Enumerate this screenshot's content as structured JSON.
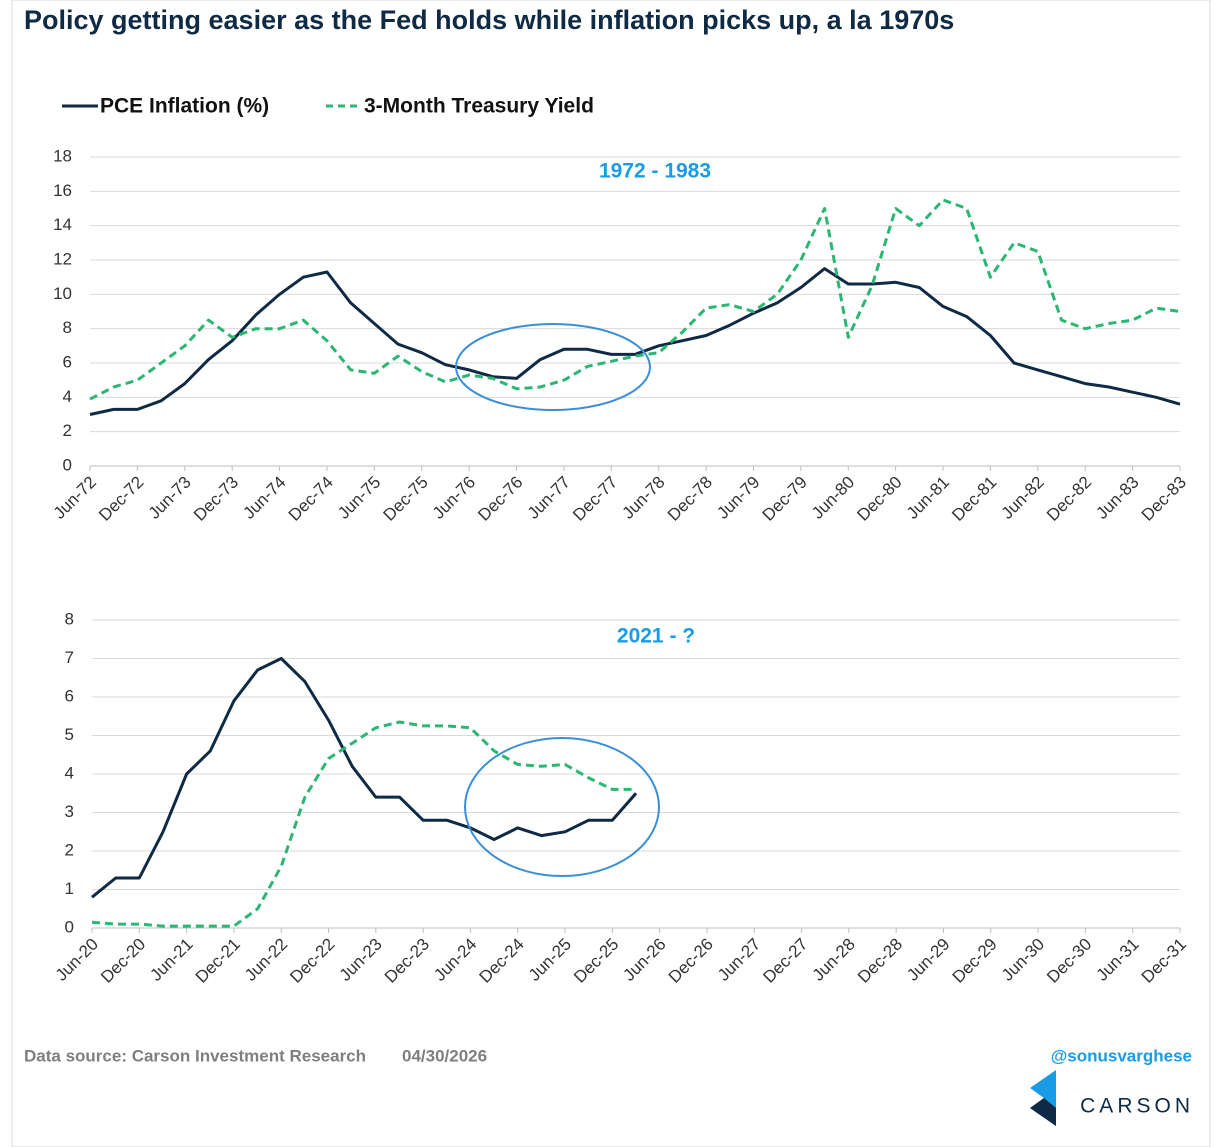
{
  "title": "Policy getting easier as the Fed holds while inflation picks up, a la 1970s",
  "footer": {
    "source": "Data source: Carson Investment Research",
    "date": "04/30/2026",
    "handle": "@sonusvarghese",
    "logo": "CARSON"
  },
  "chart_data": [
    {
      "type": "line",
      "subtitle": "1972 - 1983",
      "categories": [
        "Jun-72",
        null,
        "Dec-72",
        null,
        "Jun-73",
        null,
        "Dec-73",
        null,
        "Jun-74",
        null,
        "Dec-74",
        null,
        "Jun-75",
        null,
        "Dec-75",
        null,
        "Jun-76",
        null,
        "Dec-76",
        null,
        "Jun-77",
        null,
        "Dec-77",
        null,
        "Jun-78",
        null,
        "Dec-78",
        null,
        "Jun-79",
        null,
        "Dec-79",
        null,
        "Jun-80",
        null,
        "Dec-80",
        null,
        "Jun-81",
        null,
        "Dec-81",
        null,
        "Jun-82",
        null,
        "Dec-82",
        null,
        "Jun-83",
        null,
        "Dec-83"
      ],
      "series": [
        {
          "name": "PCE Inflation (%)",
          "color": "#0e2a44",
          "dashed": false,
          "values": [
            3.0,
            3.3,
            3.3,
            3.8,
            4.8,
            6.2,
            7.3,
            8.8,
            10.0,
            11.0,
            11.3,
            9.5,
            8.3,
            7.1,
            6.6,
            5.9,
            5.6,
            5.2,
            5.1,
            6.2,
            6.8,
            6.8,
            6.5,
            6.5,
            7.0,
            7.3,
            7.6,
            8.2,
            8.9,
            9.5,
            10.4,
            11.5,
            10.6,
            10.6,
            10.7,
            10.4,
            9.3,
            8.7,
            7.6,
            6.0,
            5.6,
            5.2,
            4.8,
            4.6,
            4.3,
            4.0,
            3.6
          ]
        },
        {
          "name": "3-Month Treasury Yield",
          "color": "#2bb673",
          "dashed": true,
          "values": [
            3.9,
            4.6,
            5.0,
            6.0,
            7.0,
            8.5,
            7.5,
            8.0,
            8.0,
            8.5,
            7.3,
            5.6,
            5.4,
            6.4,
            5.5,
            4.9,
            5.3,
            5.1,
            4.5,
            4.6,
            5.0,
            5.8,
            6.1,
            6.4,
            6.6,
            7.8,
            9.2,
            9.4,
            9.0,
            10.0,
            12.0,
            15.0,
            7.5,
            10.5,
            15.0,
            14.0,
            15.5,
            15.0,
            11.0,
            13.0,
            12.5,
            8.5,
            8.0,
            8.3,
            8.5,
            9.2,
            9.0
          ]
        }
      ],
      "ylim": [
        0,
        18
      ],
      "yticks": [
        0,
        2,
        4,
        6,
        8,
        10,
        12,
        14,
        16,
        18
      ],
      "grid": true
    },
    {
      "type": "line",
      "subtitle": "2021 - ?",
      "categories": [
        "Jun-20",
        null,
        "Dec-20",
        null,
        "Jun-21",
        null,
        "Dec-21",
        null,
        "Jun-22",
        null,
        "Dec-22",
        null,
        "Jun-23",
        null,
        "Dec-23",
        null,
        "Jun-24",
        null,
        "Dec-24",
        null,
        "Jun-25",
        null,
        "Dec-25",
        null,
        "Jun-26",
        null,
        "Dec-26",
        null,
        "Jun-27",
        null,
        "Dec-27",
        null,
        "Jun-28",
        null,
        "Dec-28",
        null,
        "Jun-29",
        null,
        "Dec-29",
        null,
        "Jun-30",
        null,
        "Dec-30",
        null,
        "Jun-31",
        null,
        "Dec-31"
      ],
      "series": [
        {
          "color": "#0e2a44",
          "dashed": false,
          "values": [
            0.8,
            1.3,
            1.3,
            2.5,
            4.0,
            4.6,
            5.9,
            6.7,
            7.0,
            6.4,
            5.4,
            4.2,
            3.4,
            3.4,
            2.8,
            2.8,
            2.6,
            2.3,
            2.6,
            2.4,
            2.5,
            2.8,
            2.8,
            3.5,
            null,
            null,
            null,
            null,
            null,
            null,
            null,
            null,
            null,
            null,
            null,
            null,
            null,
            null,
            null,
            null,
            null,
            null,
            null,
            null,
            null,
            null,
            null
          ]
        },
        {
          "color": "#2bb673",
          "dashed": true,
          "values": [
            0.15,
            0.1,
            0.1,
            0.05,
            0.05,
            0.05,
            0.05,
            0.5,
            1.6,
            3.4,
            4.4,
            4.8,
            5.2,
            5.35,
            5.25,
            5.25,
            5.2,
            4.6,
            4.25,
            4.2,
            4.25,
            3.9,
            3.6,
            3.6,
            null,
            null,
            null,
            null,
            null,
            null,
            null,
            null,
            null,
            null,
            null,
            null,
            null,
            null,
            null,
            null,
            null,
            null,
            null,
            null,
            null,
            null,
            null
          ]
        }
      ],
      "ylim": [
        0,
        8
      ],
      "yticks": [
        0,
        1,
        2,
        3,
        4,
        5,
        6,
        7,
        8
      ],
      "grid": true
    }
  ]
}
